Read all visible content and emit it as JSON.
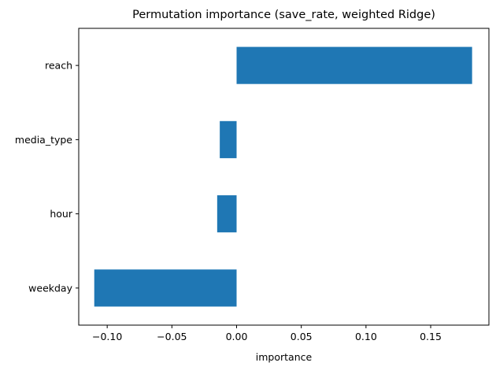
{
  "chart_data": {
    "type": "bar",
    "orientation": "horizontal",
    "title": "Permutation importance (save_rate, weighted Ridge)",
    "xlabel": "importance",
    "ylabel": "",
    "categories": [
      "reach",
      "media_type",
      "hour",
      "weekday"
    ],
    "values": [
      0.182,
      -0.013,
      -0.015,
      -0.11
    ],
    "xlim": [
      -0.122,
      0.195
    ],
    "xticks": [
      -0.1,
      -0.05,
      0.0,
      0.05,
      0.1,
      0.15
    ],
    "xtick_labels": [
      "−0.10",
      "−0.05",
      "0.00",
      "0.05",
      "0.10",
      "0.15"
    ],
    "bar_color": "#1f77b4",
    "grid": false,
    "legend": "none"
  }
}
